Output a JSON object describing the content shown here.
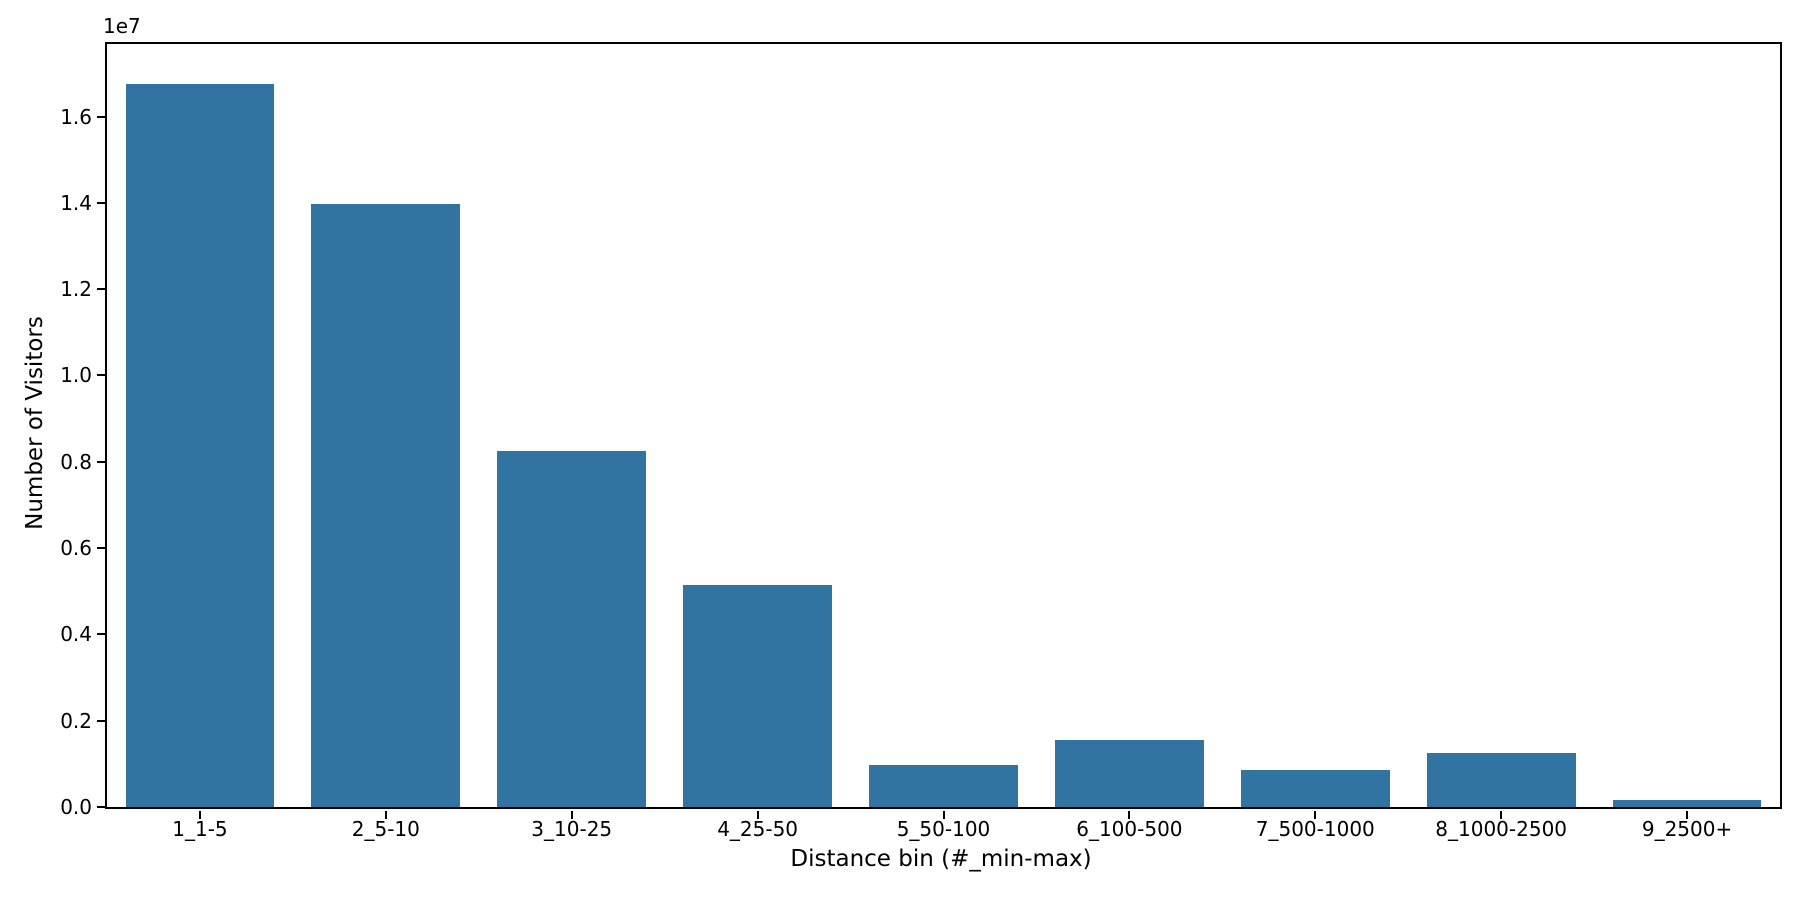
{
  "figure": {
    "background_color": "#ffffff",
    "text_color": "#000000"
  },
  "chart_data": {
    "type": "bar",
    "title": "",
    "xlabel": "Distance bin (#_min-max)",
    "ylabel": "Number of Visitors",
    "y_offset_text": "1e7",
    "categories": [
      "1_1-5",
      "2_5-10",
      "3_10-25",
      "4_25-50",
      "5_50-100",
      "6_100-500",
      "7_500-1000",
      "8_1000-2500",
      "9_2500+"
    ],
    "values": [
      16760000,
      13970000,
      8250000,
      5150000,
      980000,
      1550000,
      860000,
      1250000,
      160000
    ],
    "bar_color": "#3274a1",
    "ylim": [
      0,
      17680000
    ],
    "ytick_values": [
      0,
      2000000,
      4000000,
      6000000,
      8000000,
      10000000,
      12000000,
      14000000,
      16000000
    ],
    "ytick_labels": [
      "0.0",
      "0.2",
      "0.4",
      "0.6",
      "0.8",
      "1.0",
      "1.2",
      "1.4",
      "1.6"
    ],
    "grid": false,
    "legend_position": "none",
    "bar_width_fraction": 0.8
  }
}
